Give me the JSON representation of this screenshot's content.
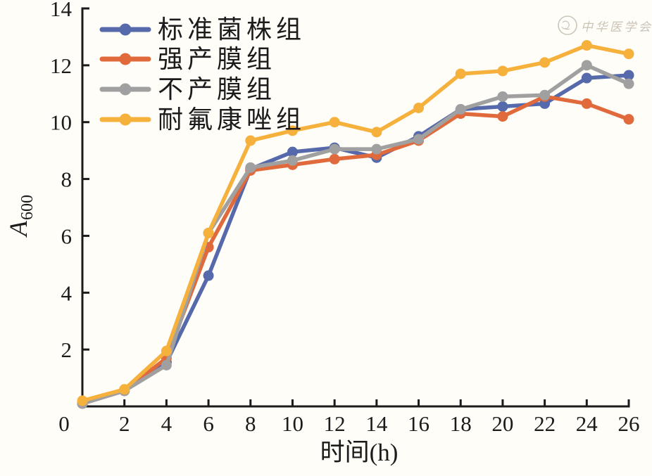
{
  "figure": {
    "watermark": {
      "text": "中华医学会"
    }
  },
  "chart_data": {
    "type": "line",
    "title": "",
    "xlabel": "时间(h)",
    "ylabel": "A600",
    "ylabel_main": "A",
    "ylabel_sub": "600",
    "xlim": [
      0,
      26
    ],
    "ylim": [
      0,
      14
    ],
    "x_ticks": [
      0,
      2,
      4,
      6,
      8,
      10,
      12,
      14,
      16,
      18,
      20,
      22,
      24,
      26
    ],
    "y_ticks": [
      2,
      4,
      6,
      8,
      10,
      12,
      14
    ],
    "grid": false,
    "legend": {
      "position": "top-left-inside"
    },
    "x": [
      0,
      2,
      4,
      6,
      8,
      10,
      12,
      14,
      16,
      18,
      20,
      22,
      24,
      26
    ],
    "series": [
      {
        "name": "标准菌株组",
        "color": "#5569ab",
        "values": [
          0.1,
          0.55,
          1.55,
          4.6,
          8.35,
          8.95,
          9.1,
          8.75,
          9.5,
          10.45,
          10.55,
          10.65,
          11.55,
          11.65
        ]
      },
      {
        "name": "强产膜组",
        "color": "#e16a3d",
        "values": [
          0.1,
          0.55,
          1.7,
          5.6,
          8.3,
          8.5,
          8.7,
          8.85,
          9.35,
          10.3,
          10.2,
          10.9,
          10.65,
          10.1
        ]
      },
      {
        "name": "不产膜组",
        "color": "#a0a0a0",
        "values": [
          0.1,
          0.55,
          1.45,
          6.1,
          8.4,
          8.65,
          9.05,
          9.05,
          9.4,
          10.45,
          10.9,
          10.95,
          12.0,
          11.35
        ]
      },
      {
        "name": "耐氟康唑组",
        "color": "#f6b13d",
        "values": [
          0.2,
          0.6,
          1.95,
          6.1,
          9.35,
          9.7,
          10.0,
          9.65,
          10.5,
          11.7,
          11.8,
          12.1,
          12.7,
          12.4
        ]
      }
    ]
  }
}
